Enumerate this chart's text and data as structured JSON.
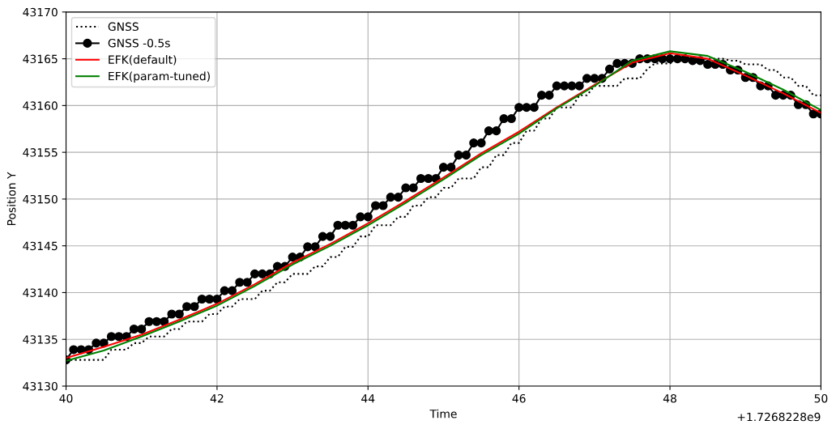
{
  "chart_data": {
    "type": "line",
    "xlabel": "Time",
    "ylabel": "Position Y",
    "annotations": [
      "+1.7268228e9"
    ],
    "xlim": [
      40,
      50
    ],
    "xticks": [
      40,
      42,
      44,
      46,
      48,
      50
    ],
    "ylim": [
      43130,
      43170
    ],
    "yticks": [
      43130,
      43135,
      43140,
      43145,
      43150,
      43155,
      43160,
      43165,
      43170
    ],
    "grid": true,
    "legend": "top left",
    "x": [
      40.0,
      40.1,
      40.2,
      40.3,
      40.4,
      40.5,
      40.6,
      40.7,
      40.8,
      40.9,
      41.0,
      41.1,
      41.2,
      41.3,
      41.4,
      41.5,
      41.6,
      41.7,
      41.8,
      41.9,
      42.0,
      42.1,
      42.2,
      42.3,
      42.4,
      42.5,
      42.6,
      42.7,
      42.8,
      42.9,
      43.0,
      43.1,
      43.2,
      43.3,
      43.4,
      43.5,
      43.6,
      43.7,
      43.8,
      43.9,
      44.0,
      44.1,
      44.2,
      44.3,
      44.4,
      44.5,
      44.6,
      44.7,
      44.8,
      44.9,
      45.0,
      45.1,
      45.2,
      45.3,
      45.4,
      45.5,
      45.6,
      45.7,
      45.8,
      45.9,
      46.0,
      46.1,
      46.2,
      46.3,
      46.4,
      46.5,
      46.6,
      46.7,
      46.8,
      46.9,
      47.0,
      47.1,
      47.2,
      47.3,
      47.4,
      47.5,
      47.6,
      47.7,
      47.8,
      47.9,
      48.0,
      48.1,
      48.2,
      48.3,
      48.4,
      48.5,
      48.6,
      48.7,
      48.8,
      48.9,
      49.0,
      49.1,
      49.2,
      49.3,
      49.4,
      49.5,
      49.6,
      49.7,
      49.8,
      49.9,
      50.0
    ],
    "series": [
      {
        "name": "GNSS",
        "color": "#000000",
        "line_style": "dotted",
        "marker": "none",
        "values": [
          43132.8,
          43132.8,
          43132.8,
          43132.8,
          43132.8,
          43132.8,
          43133.9,
          43133.9,
          43133.9,
          43134.6,
          43134.6,
          43135.3,
          43135.3,
          43135.3,
          43136.1,
          43136.1,
          43136.9,
          43136.9,
          43136.9,
          43137.7,
          43137.7,
          43138.5,
          43138.5,
          43139.3,
          43139.3,
          43139.3,
          43140.2,
          43140.2,
          43141.1,
          43141.1,
          43142.0,
          43142.0,
          43142.0,
          43142.8,
          43142.8,
          43143.8,
          43143.8,
          43144.9,
          43144.9,
          43146.0,
          43146.0,
          43147.2,
          43147.2,
          43147.2,
          43148.1,
          43148.1,
          43149.3,
          43149.3,
          43150.2,
          43150.2,
          43151.2,
          43151.2,
          43152.2,
          43152.2,
          43152.2,
          43153.4,
          43153.4,
          43154.7,
          43154.7,
          43156.0,
          43156.0,
          43157.3,
          43157.3,
          43158.6,
          43158.6,
          43159.8,
          43159.8,
          43159.8,
          43161.1,
          43161.1,
          43162.1,
          43162.1,
          43162.1,
          43162.1,
          43162.9,
          43162.9,
          43162.9,
          43163.9,
          43164.5,
          43164.5,
          43164.5,
          43165.0,
          43165.0,
          43165.0,
          43165.0,
          43165.0,
          43165.0,
          43165.0,
          43164.8,
          43164.8,
          43164.4,
          43164.4,
          43164.4,
          43163.8,
          43163.8,
          43163.0,
          43163.0,
          43162.1,
          43162.1,
          43161.1,
          43161.1
        ]
      },
      {
        "name": "GNSS -0.5s",
        "color": "#000000",
        "line_style": "solid",
        "marker": "circle",
        "values": [
          43132.8,
          43133.9,
          43133.9,
          43133.9,
          43134.6,
          43134.6,
          43135.3,
          43135.3,
          43135.3,
          43136.1,
          43136.1,
          43136.9,
          43136.9,
          43136.9,
          43137.7,
          43137.7,
          43138.5,
          43138.5,
          43139.3,
          43139.3,
          43139.3,
          43140.2,
          43140.2,
          43141.1,
          43141.1,
          43142.0,
          43142.0,
          43142.0,
          43142.8,
          43142.8,
          43143.8,
          43143.8,
          43144.9,
          43144.9,
          43146.0,
          43146.0,
          43147.2,
          43147.2,
          43147.2,
          43148.1,
          43148.1,
          43149.3,
          43149.3,
          43150.2,
          43150.2,
          43151.2,
          43151.2,
          43152.2,
          43152.2,
          43152.2,
          43153.4,
          43153.4,
          43154.7,
          43154.7,
          43156.0,
          43156.0,
          43157.3,
          43157.3,
          43158.6,
          43158.6,
          43159.8,
          43159.8,
          43159.8,
          43161.1,
          43161.1,
          43162.1,
          43162.1,
          43162.1,
          43162.1,
          43162.9,
          43162.9,
          43162.9,
          43163.9,
          43164.5,
          43164.5,
          43164.5,
          43165.0,
          43165.0,
          43165.0,
          43165.0,
          43165.0,
          43165.0,
          43165.0,
          43164.8,
          43164.8,
          43164.4,
          43164.4,
          43164.4,
          43163.8,
          43163.8,
          43163.0,
          43163.0,
          43162.1,
          43162.1,
          43161.1,
          43161.1,
          43161.1,
          43160.1,
          43160.1,
          43159.1,
          43159.1
        ]
      },
      {
        "name": "EFK(default)",
        "color": "#ff0000",
        "line_style": "solid",
        "marker": "none",
        "x": [
          40,
          40.5,
          41,
          41.5,
          42,
          42.5,
          43,
          43.5,
          44,
          44.5,
          45,
          45.5,
          46,
          46.5,
          47,
          47.5,
          48,
          48.5,
          49,
          49.5,
          50
        ],
        "values": [
          43133.0,
          43134.2,
          43135.5,
          43137.1,
          43138.8,
          43140.9,
          43143.2,
          43145.2,
          43147.4,
          43149.8,
          43152.3,
          43154.9,
          43157.2,
          43159.8,
          43162.2,
          43164.6,
          43165.6,
          43165.0,
          43163.2,
          43161.3,
          43159.2
        ]
      },
      {
        "name": "EFK(param-tuned)",
        "color": "#008000",
        "line_style": "solid",
        "marker": "none",
        "x": [
          40,
          40.5,
          41,
          41.5,
          42,
          42.5,
          43,
          43.5,
          44,
          44.5,
          45,
          45.5,
          46,
          46.5,
          47,
          47.5,
          48,
          48.5,
          49,
          49.5,
          50
        ],
        "values": [
          43132.7,
          43133.8,
          43135.3,
          43136.9,
          43138.6,
          43140.7,
          43143.0,
          43145.0,
          43147.2,
          43149.6,
          43152.1,
          43154.7,
          43157.0,
          43159.7,
          43162.1,
          43164.8,
          43165.8,
          43165.3,
          43163.6,
          43161.7,
          43159.5
        ]
      }
    ]
  }
}
